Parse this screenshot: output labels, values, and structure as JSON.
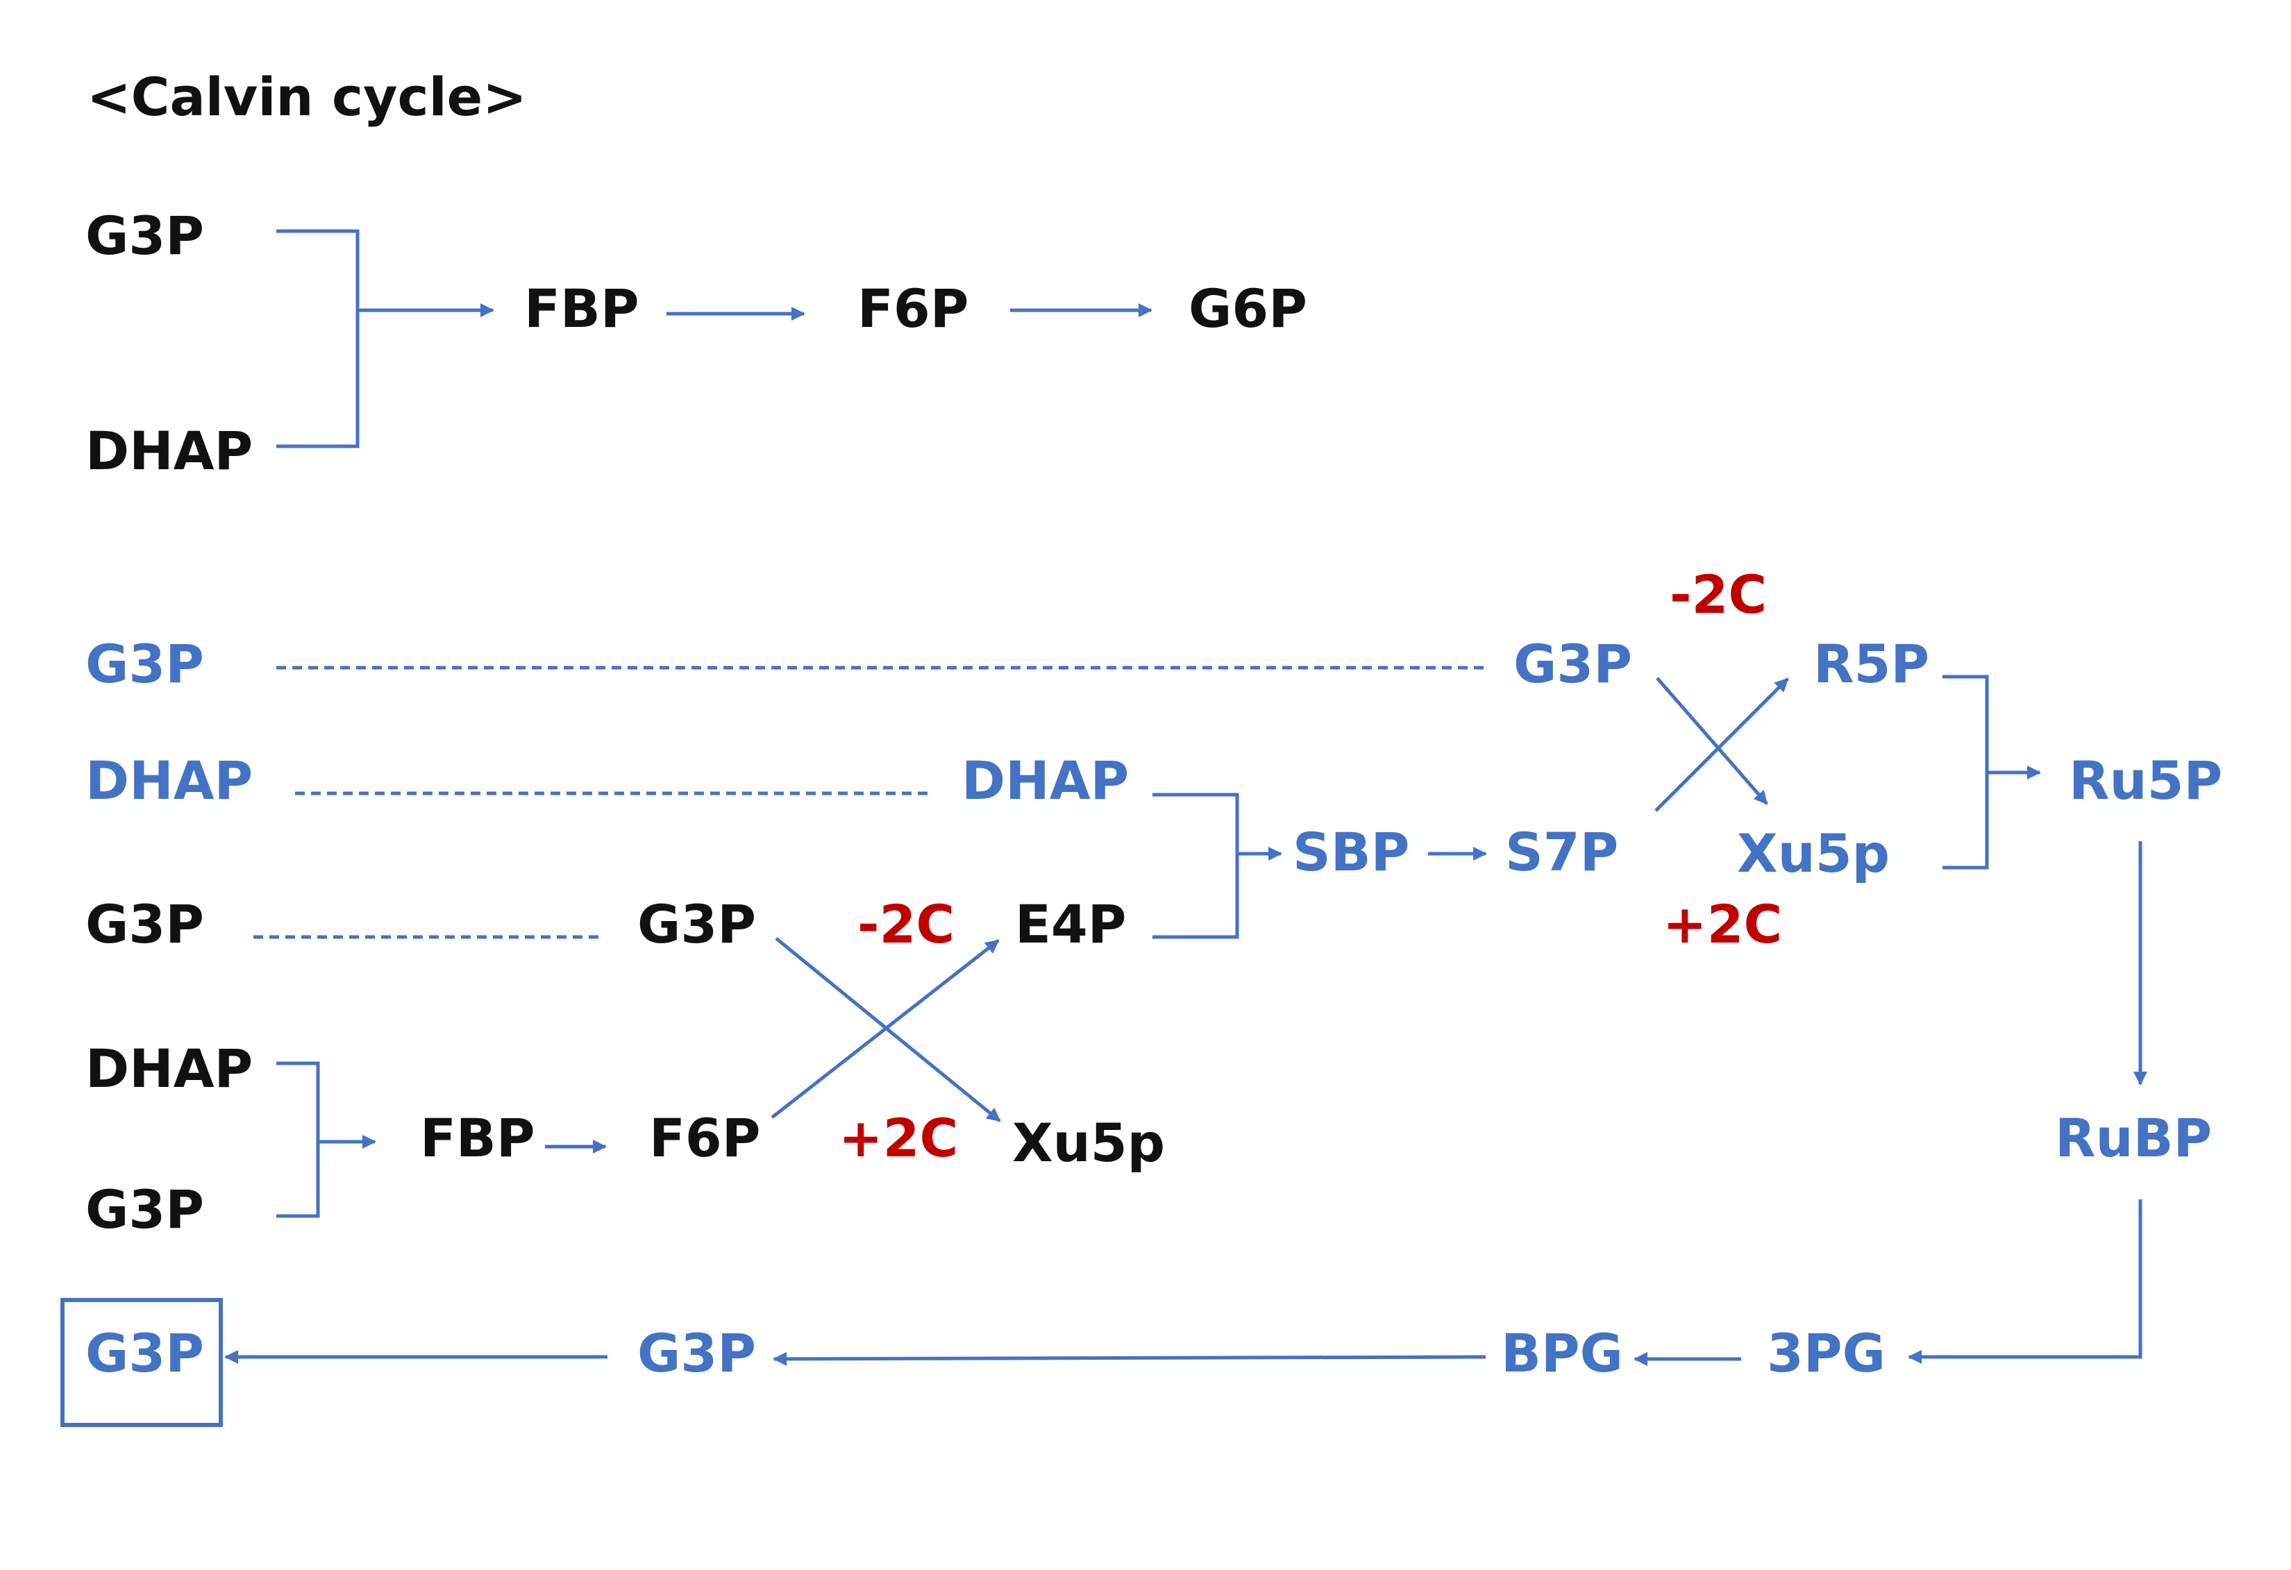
{
  "title": "<Calvin   cycle>",
  "colors": {
    "metabolite": "#111111",
    "cycle": "#4472C4",
    "carbon_transfer": "#C00000"
  },
  "section1": {
    "g3p": "G3P",
    "dhap": "DHAP",
    "fbp": "FBP",
    "f6p": "F6P",
    "g6p": "G6P"
  },
  "section2": {
    "g3p_top": "G3P",
    "dhap_top": "DHAP",
    "g3p_mid": "G3P",
    "dhap_bottom": "DHAP",
    "g3p_bottom": "G3P",
    "g3p_mid2": "G3P",
    "fbp": "FBP",
    "f6p": "F6P",
    "minus_2c_left": "-2C",
    "plus_2c_left": "+2C",
    "e4p": "E4P",
    "xu5p_left": "Xu5p",
    "dhap_mid": "DHAP",
    "sbp": "SBP",
    "s7p": "S7P",
    "g3p_right": "G3P",
    "minus_2c_right": "-2C",
    "plus_2c_right": "+2C",
    "r5p": "R5P",
    "xu5p_right": "Xu5p",
    "ru5p": "Ru5P",
    "rubp": "RuBP",
    "pg3": "3PG",
    "bpg": "BPG",
    "g3p_return": "G3P",
    "g3p_product": "G3P"
  }
}
